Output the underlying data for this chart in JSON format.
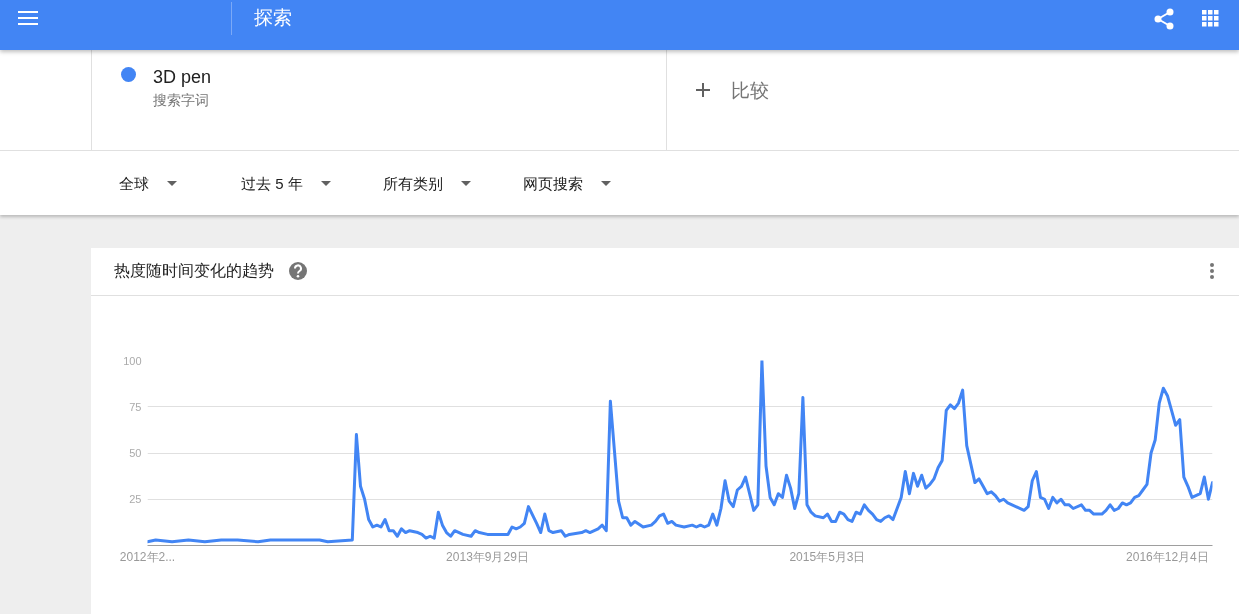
{
  "chart_data": {
    "type": "line",
    "title": "热度随时间变化的趋势",
    "annotations": [
      "探索",
      "搜索字词",
      "比较",
      "全球",
      "过去 5 年",
      "所有类别",
      "网页搜索"
    ],
    "legend": "top left",
    "grid": "y",
    "xlim": [
      "2012-02-26",
      "2017-02-19"
    ],
    "xticks": [
      {
        "value": "2012-02-26",
        "label": "2012年2..."
      },
      {
        "value": "2013-09-29",
        "label": "2013年9月29日"
      },
      {
        "value": "2015-05-03",
        "label": "2015年5月3日"
      },
      {
        "value": "2016-12-04",
        "label": "2016年12月4日"
      }
    ],
    "ylim": [
      0,
      100
    ],
    "yticks": [
      25,
      50,
      75,
      100
    ],
    "x": [
      "2012-02-26",
      "2012-03-11",
      "2012-04-08",
      "2012-05-06",
      "2012-06-03",
      "2012-07-01",
      "2012-07-29",
      "2012-09-02",
      "2012-09-23",
      "2012-11-04",
      "2012-12-16",
      "2012-12-30",
      "2013-02-10",
      "2013-02-17",
      "2013-02-24",
      "2013-03-03",
      "2013-03-10",
      "2013-03-17",
      "2013-03-24",
      "2013-03-31",
      "2013-04-07",
      "2013-04-14",
      "2013-04-21",
      "2013-04-28",
      "2013-05-05",
      "2013-05-12",
      "2013-05-19",
      "2013-06-02",
      "2013-06-09",
      "2013-06-16",
      "2013-06-23",
      "2013-06-30",
      "2013-07-07",
      "2013-07-14",
      "2013-07-21",
      "2013-07-28",
      "2013-08-04",
      "2013-08-18",
      "2013-09-01",
      "2013-09-08",
      "2013-09-15",
      "2013-09-29",
      "2013-11-03",
      "2013-11-10",
      "2013-11-17",
      "2013-11-24",
      "2013-12-01",
      "2013-12-08",
      "2013-12-22",
      "2013-12-29",
      "2014-01-05",
      "2014-01-12",
      "2014-01-19",
      "2014-02-02",
      "2014-02-09",
      "2014-02-16",
      "2014-03-09",
      "2014-03-16",
      "2014-03-23",
      "2014-04-06",
      "2014-04-13",
      "2014-04-20",
      "2014-04-27",
      "2014-05-04",
      "2014-05-11",
      "2014-05-18",
      "2014-05-25",
      "2014-06-01",
      "2014-06-08",
      "2014-06-22",
      "2014-07-06",
      "2014-07-13",
      "2014-07-20",
      "2014-07-27",
      "2014-08-03",
      "2014-08-10",
      "2014-08-17",
      "2014-08-31",
      "2014-09-14",
      "2014-09-21",
      "2014-09-28",
      "2014-10-05",
      "2014-10-12",
      "2014-10-19",
      "2014-10-26",
      "2014-11-02",
      "2014-11-09",
      "2014-11-16",
      "2014-11-23",
      "2014-11-30",
      "2014-12-07",
      "2014-12-14",
      "2014-12-28",
      "2015-01-04",
      "2015-01-11",
      "2015-01-18",
      "2015-01-25",
      "2015-02-01",
      "2015-02-08",
      "2015-02-15",
      "2015-02-22",
      "2015-03-01",
      "2015-03-08",
      "2015-03-15",
      "2015-03-22",
      "2015-03-29",
      "2015-04-05",
      "2015-04-12",
      "2015-04-26",
      "2015-05-03",
      "2015-05-10",
      "2015-05-17",
      "2015-05-24",
      "2015-05-31",
      "2015-06-07",
      "2015-06-14",
      "2015-06-21",
      "2015-06-28",
      "2015-07-05",
      "2015-07-12",
      "2015-07-19",
      "2015-07-26",
      "2015-08-02",
      "2015-08-09",
      "2015-08-16",
      "2015-08-23",
      "2015-09-06",
      "2015-09-13",
      "2015-09-20",
      "2015-09-27",
      "2015-10-04",
      "2015-10-11",
      "2015-10-18",
      "2015-10-25",
      "2015-11-01",
      "2015-11-08",
      "2015-11-15",
      "2015-11-22",
      "2015-11-29",
      "2015-12-06",
      "2015-12-13",
      "2015-12-20",
      "2015-12-27",
      "2016-01-03",
      "2016-01-10",
      "2016-01-17",
      "2016-01-24",
      "2016-01-31",
      "2016-02-07",
      "2016-02-14",
      "2016-02-21",
      "2016-02-28",
      "2016-03-06",
      "2016-04-03",
      "2016-04-10",
      "2016-04-17",
      "2016-04-24",
      "2016-05-01",
      "2016-05-08",
      "2016-05-15",
      "2016-05-22",
      "2016-05-29",
      "2016-06-05",
      "2016-06-12",
      "2016-06-19",
      "2016-06-26",
      "2016-07-10",
      "2016-07-17",
      "2016-07-24",
      "2016-07-31",
      "2016-08-14",
      "2016-08-21",
      "2016-08-28",
      "2016-09-04",
      "2016-09-11",
      "2016-09-18",
      "2016-09-25",
      "2016-10-02",
      "2016-10-09",
      "2016-10-16",
      "2016-10-23",
      "2016-10-30",
      "2016-11-06",
      "2016-11-13",
      "2016-11-20",
      "2016-11-27",
      "2016-12-04",
      "2016-12-11",
      "2016-12-18",
      "2016-12-25",
      "2017-01-01",
      "2017-01-08",
      "2017-01-15",
      "2017-01-29",
      "2017-02-05",
      "2017-02-12",
      "2017-02-19"
    ],
    "series": [
      {
        "name": "3D pen",
        "color": "#4285f4",
        "values": [
          2,
          3,
          2,
          3,
          2,
          3,
          3,
          2,
          3,
          3,
          3,
          2,
          3,
          60,
          32,
          25,
          14,
          10,
          11,
          10,
          14,
          8,
          8,
          5,
          9,
          7,
          8,
          7,
          6,
          4,
          5,
          4,
          18,
          11,
          7,
          5,
          8,
          6,
          5,
          8,
          7,
          6,
          6,
          10,
          9,
          10,
          12,
          21,
          12,
          7,
          17,
          8,
          7,
          8,
          5,
          6,
          7,
          8,
          7,
          9,
          11,
          8,
          78,
          51,
          24,
          15,
          15,
          11,
          13,
          10,
          11,
          13,
          16,
          17,
          12,
          13,
          11,
          10,
          11,
          10,
          11,
          10,
          11,
          17,
          11,
          20,
          35,
          24,
          21,
          30,
          32,
          37,
          19,
          22,
          100,
          43,
          26,
          22,
          28,
          26,
          38,
          31,
          20,
          28,
          80,
          22,
          18,
          16,
          15,
          17,
          13,
          13,
          18,
          17,
          14,
          13,
          18,
          17,
          22,
          19,
          17,
          14,
          13,
          15,
          16,
          14,
          26,
          40,
          28,
          39,
          32,
          38,
          31,
          33,
          36,
          42,
          46,
          73,
          76,
          74,
          77,
          84,
          54,
          44,
          34,
          36,
          32,
          28,
          29,
          27,
          24,
          25,
          23,
          19,
          21,
          35,
          40,
          26,
          25,
          20,
          26,
          23,
          25,
          22,
          22,
          20,
          22,
          19,
          19,
          17,
          17,
          19,
          22,
          19,
          20,
          23,
          22,
          23,
          26,
          27,
          30,
          33,
          50,
          57,
          77,
          85,
          81,
          73,
          65,
          68,
          37,
          32,
          26,
          28,
          37,
          25,
          34
        ]
      }
    ]
  }
}
